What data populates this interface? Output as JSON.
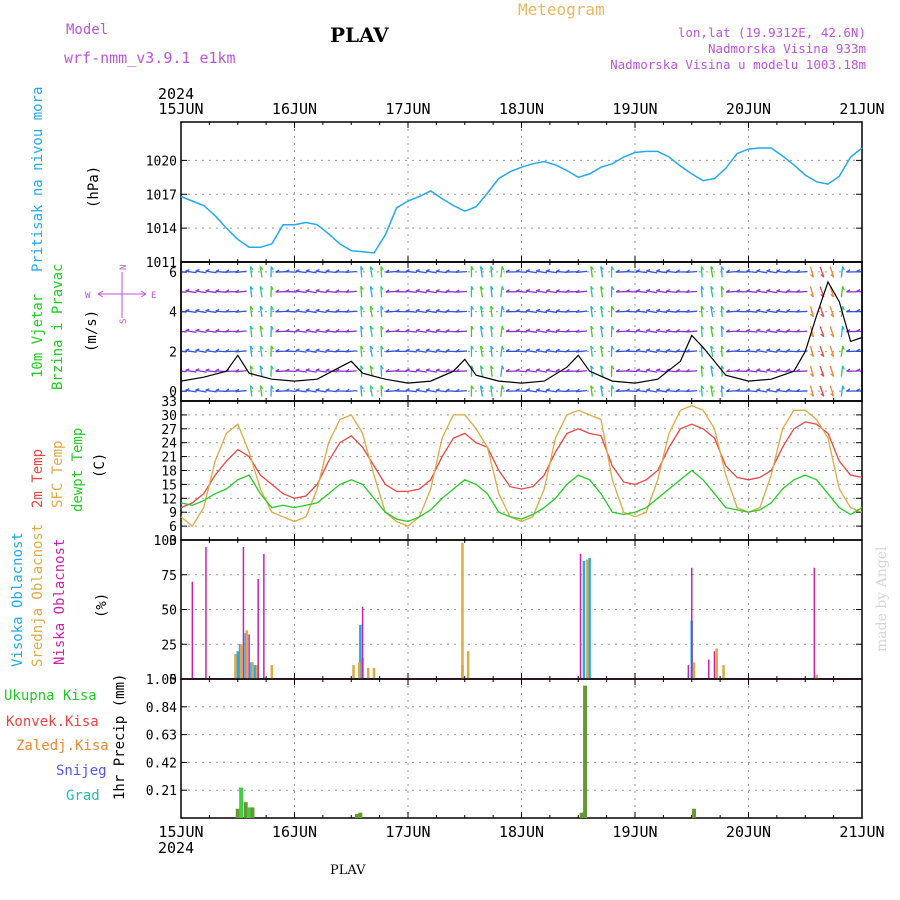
{
  "header": {
    "model_label": "Model",
    "model_name": "wrf-nmm_v3.9.1 e1km",
    "station": "PLAV",
    "title": "Meteogram",
    "lonlat": "lon,lat (19.9312E, 42.6N)",
    "altitude": "Nadmorska Visina 933m",
    "altitude_model": "Nadmorska Visina u modelu 1003.18m",
    "year": "2024",
    "footer_station": "PLAV",
    "credit": "made by Angel"
  },
  "colors": {
    "pressure": "#22aaee",
    "t2m": "#ee4444",
    "tsfc": "#ddaa44",
    "dewpt": "#22cc22",
    "high_cloud": "#22aaee",
    "mid_cloud": "#ddaa44",
    "low_cloud": "#cc22aa",
    "precip_bar": "#669933",
    "precip_bar_light": "#44cc44",
    "title_orange": "#e8b860",
    "header_purple": "#bb55dd"
  },
  "x_axis": {
    "ticks": [
      "15JUN",
      "16JUN",
      "17JUN",
      "18JUN",
      "19JUN",
      "20JUN",
      "21JUN"
    ]
  },
  "chart_data": [
    {
      "type": "line",
      "name": "pressure",
      "ylabel_lines": [
        "Pritisak na nivou mora",
        "(hPa)"
      ],
      "ylim": [
        1011,
        1023.4
      ],
      "yticks": [
        1011,
        1014,
        1017,
        1020
      ],
      "x_days": [
        0,
        0.1,
        0.2,
        0.3,
        0.4,
        0.5,
        0.6,
        0.7,
        0.8,
        0.9,
        1.0,
        1.1,
        1.2,
        1.3,
        1.4,
        1.5,
        1.6,
        1.7,
        1.8,
        1.9,
        2.0,
        2.1,
        2.2,
        2.3,
        2.4,
        2.5,
        2.6,
        2.7,
        2.8,
        2.9,
        3.0,
        3.1,
        3.2,
        3.3,
        3.4,
        3.5,
        3.6,
        3.7,
        3.8,
        3.9,
        4.0,
        4.1,
        4.2,
        4.3,
        4.4,
        4.5,
        4.6,
        4.7,
        4.8,
        4.9,
        5.0,
        5.1,
        5.2,
        5.3,
        5.4,
        5.5,
        5.6,
        5.7,
        5.8,
        5.9,
        6.0
      ],
      "values": [
        1016.8,
        1016.4,
        1016.0,
        1015.1,
        1014.0,
        1013.0,
        1012.3,
        1012.3,
        1012.6,
        1014.3,
        1014.3,
        1014.5,
        1014.3,
        1013.5,
        1012.6,
        1012.0,
        1011.9,
        1011.8,
        1013.4,
        1015.8,
        1016.4,
        1016.8,
        1017.3,
        1016.6,
        1016.0,
        1015.5,
        1015.9,
        1017.1,
        1018.4,
        1019.0,
        1019.4,
        1019.7,
        1019.9,
        1019.6,
        1019.1,
        1018.5,
        1018.8,
        1019.4,
        1019.7,
        1020.3,
        1020.7,
        1020.8,
        1020.8,
        1020.3,
        1019.5,
        1018.8,
        1018.2,
        1018.4,
        1019.3,
        1020.6,
        1021.0,
        1021.1,
        1021.1,
        1020.4,
        1019.6,
        1018.7,
        1018.1,
        1017.9,
        1018.6,
        1020.3,
        1021.1
      ]
    },
    {
      "type": "line",
      "name": "wind",
      "ylabel_lines": [
        "10m Vjetar",
        "Brzina i Pravac",
        "(m/s)"
      ],
      "compass": {
        "north": "N",
        "south": "S",
        "west": "W",
        "east": "E"
      },
      "ylim": [
        -0.5,
        6.5
      ],
      "yticks": [
        0,
        2,
        4,
        6
      ],
      "barb_levels": [
        0,
        1,
        2,
        3,
        4,
        5,
        6
      ],
      "x_days": [
        0,
        0.2,
        0.4,
        0.5,
        0.6,
        0.8,
        1.0,
        1.2,
        1.4,
        1.5,
        1.6,
        1.8,
        2.0,
        2.2,
        2.4,
        2.5,
        2.6,
        2.8,
        3.0,
        3.2,
        3.4,
        3.5,
        3.6,
        3.8,
        4.0,
        4.2,
        4.4,
        4.5,
        4.6,
        4.8,
        5.0,
        5.2,
        5.4,
        5.5,
        5.6,
        5.7,
        5.8,
        5.9,
        6.0
      ],
      "values": [
        0.5,
        0.7,
        1.0,
        1.8,
        0.9,
        0.6,
        0.5,
        0.6,
        1.2,
        1.5,
        0.9,
        0.6,
        0.4,
        0.5,
        1.0,
        1.6,
        0.8,
        0.5,
        0.4,
        0.5,
        1.2,
        1.8,
        1.0,
        0.5,
        0.4,
        0.6,
        1.5,
        2.8,
        2.2,
        0.8,
        0.5,
        0.6,
        1.0,
        2.0,
        3.8,
        5.5,
        4.5,
        2.5,
        2.7
      ]
    },
    {
      "type": "line",
      "name": "temperature",
      "ylabel_lines": [
        "2m Temp",
        "SFC Temp",
        "dewpt Temp",
        "(C)"
      ],
      "ylim": [
        3,
        33
      ],
      "yticks": [
        3,
        6,
        9,
        12,
        15,
        18,
        21,
        24,
        27,
        30,
        33
      ],
      "x_days": [
        0,
        0.1,
        0.2,
        0.3,
        0.4,
        0.5,
        0.6,
        0.7,
        0.8,
        0.9,
        1.0,
        1.1,
        1.2,
        1.3,
        1.4,
        1.5,
        1.6,
        1.7,
        1.8,
        1.9,
        2.0,
        2.1,
        2.2,
        2.3,
        2.4,
        2.5,
        2.6,
        2.7,
        2.8,
        2.9,
        3.0,
        3.1,
        3.2,
        3.3,
        3.4,
        3.5,
        3.6,
        3.7,
        3.8,
        3.9,
        4.0,
        4.1,
        4.2,
        4.3,
        4.4,
        4.5,
        4.6,
        4.7,
        4.8,
        4.9,
        5.0,
        5.1,
        5.2,
        5.3,
        5.4,
        5.5,
        5.6,
        5.7,
        5.8,
        5.9,
        6.0
      ],
      "series": [
        {
          "name": "t2m",
          "values": [
            10,
            11,
            13,
            17,
            20,
            22.5,
            21,
            17,
            15,
            13,
            12,
            12.5,
            15,
            20,
            24,
            25.5,
            23,
            19,
            15,
            13.5,
            13.5,
            14,
            16,
            21,
            25,
            26,
            24,
            23,
            18,
            14.5,
            14,
            14.5,
            17,
            22,
            26,
            27,
            26,
            25.5,
            19,
            15.5,
            15,
            16,
            18,
            23,
            27,
            28,
            27,
            25,
            19,
            16.5,
            16,
            16.5,
            18,
            23,
            27,
            28.5,
            28,
            26,
            20,
            17,
            16.5
          ]
        },
        {
          "name": "tsfc",
          "values": [
            8,
            6,
            10,
            20,
            26,
            28,
            22,
            14,
            9,
            8,
            7,
            8,
            14,
            24,
            29,
            30,
            26,
            17,
            9,
            7,
            6,
            8,
            14,
            25,
            30,
            30,
            27,
            23,
            13,
            8,
            7,
            8,
            14,
            25,
            30,
            31,
            30,
            29,
            16,
            9,
            8,
            9,
            16,
            26,
            31,
            32,
            31,
            27,
            17,
            10,
            9,
            10,
            17,
            27,
            31,
            31,
            29,
            25,
            14,
            10,
            9
          ]
        },
        {
          "name": "dewpt",
          "values": [
            11,
            10.5,
            11.5,
            13,
            14,
            16,
            17,
            13,
            10,
            10.5,
            10,
            10.5,
            11,
            13,
            15,
            16,
            15,
            12,
            9,
            7.5,
            7,
            8,
            9.5,
            12,
            14,
            16,
            15,
            13,
            9,
            8,
            7.5,
            8.5,
            10,
            12,
            15,
            17,
            16,
            13,
            9,
            8.5,
            9,
            10,
            12,
            14,
            16,
            18,
            16,
            13,
            10,
            9.5,
            9,
            9.5,
            11,
            14,
            16,
            17,
            16,
            13,
            10,
            8.5,
            10
          ]
        }
      ]
    },
    {
      "type": "bar",
      "name": "cloudiness",
      "ylabel_lines": [
        "Visoka Oblacnost",
        "Srednja Oblacnost",
        "Niska Oblacnost",
        "(%)"
      ],
      "ylim": [
        0,
        100
      ],
      "yticks": [
        0,
        25,
        50,
        75,
        100
      ],
      "series": [
        {
          "name": "high",
          "points": [
            [
              0.5,
              20
            ],
            [
              0.52,
              25
            ],
            [
              0.57,
              33
            ],
            [
              0.62,
              12
            ],
            [
              0.65,
              10
            ],
            [
              1.58,
              39
            ],
            [
              2.48,
              10
            ],
            [
              3.55,
              85
            ],
            [
              3.6,
              87
            ],
            [
              4.5,
              42
            ]
          ]
        },
        {
          "name": "mid",
          "points": [
            [
              0.48,
              18
            ],
            [
              0.53,
              25
            ],
            [
              0.58,
              35
            ],
            [
              0.63,
              12
            ],
            [
              0.67,
              10
            ],
            [
              0.8,
              10
            ],
            [
              1.52,
              10
            ],
            [
              1.57,
              12
            ],
            [
              1.6,
              15
            ],
            [
              1.65,
              8
            ],
            [
              1.7,
              8
            ],
            [
              2.48,
              98
            ],
            [
              2.53,
              20
            ],
            [
              3.58,
              86
            ],
            [
              4.52,
              12
            ],
            [
              4.72,
              22
            ],
            [
              4.78,
              10
            ],
            [
              5.6,
              3
            ]
          ]
        },
        {
          "name": "low",
          "points": [
            [
              0.1,
              70
            ],
            [
              0.22,
              95
            ],
            [
              0.55,
              95
            ],
            [
              0.6,
              32
            ],
            [
              0.68,
              72
            ],
            [
              0.73,
              90
            ],
            [
              1.6,
              52
            ],
            [
              3.52,
              90
            ],
            [
              4.47,
              10
            ],
            [
              4.5,
              80
            ],
            [
              4.65,
              14
            ],
            [
              4.7,
              20
            ],
            [
              5.58,
              80
            ]
          ]
        }
      ]
    },
    {
      "type": "bar",
      "name": "precipitation",
      "ylabel_lines": [
        "Ukupna Kisa",
        "Konvek.Kisa",
        "Zaledj.Kisa",
        "Snijeg",
        "Grad",
        "1hr Precip (mm)"
      ],
      "ylim": [
        0,
        1.05
      ],
      "yticks": [
        0.21,
        0.42,
        0.63,
        0.84,
        1.05
      ],
      "points": [
        [
          0.5,
          0.07
        ],
        [
          0.53,
          0.23
        ],
        [
          0.57,
          0.12
        ],
        [
          0.6,
          0.08
        ],
        [
          0.63,
          0.08
        ],
        [
          1.55,
          0.03
        ],
        [
          1.58,
          0.04
        ],
        [
          3.53,
          0.04
        ],
        [
          3.56,
          1.0
        ],
        [
          4.52,
          0.07
        ]
      ]
    }
  ]
}
